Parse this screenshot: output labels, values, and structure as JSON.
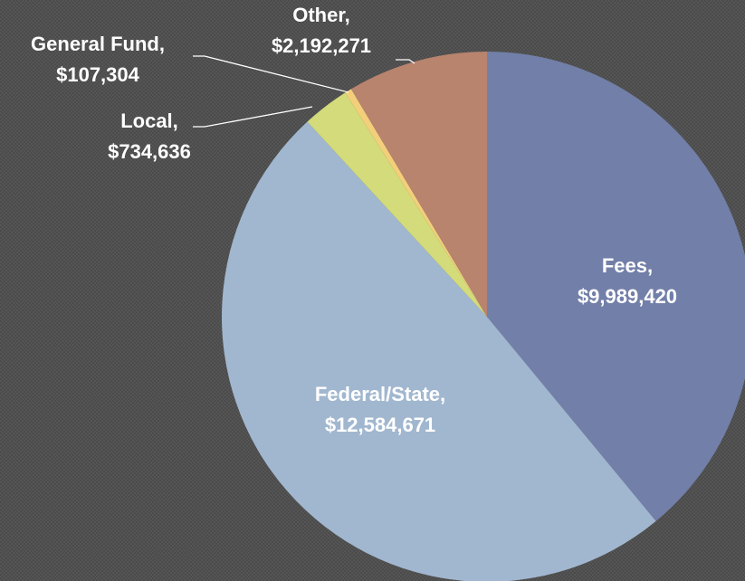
{
  "chart_data": {
    "type": "pie",
    "categories": [
      "Fees,",
      "Federal/State,",
      "Local,",
      "General Fund,",
      "Other,"
    ],
    "values": [
      9989420,
      12584671,
      734636,
      107304,
      2192271
    ],
    "value_labels": [
      "$9,989,420",
      "$12,584,671",
      "$734,636",
      "$107,304",
      "$2,192,271"
    ],
    "colors": [
      "#727fa8",
      "#a1b7cf",
      "#d3db7a",
      "#f4cf7a",
      "#b8846e"
    ]
  }
}
